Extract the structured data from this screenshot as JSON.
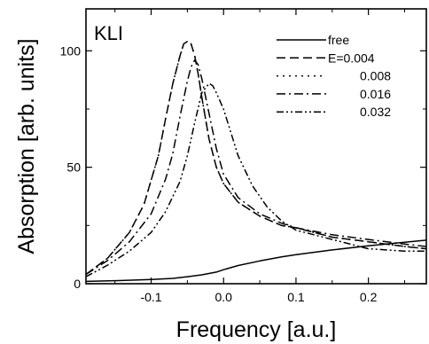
{
  "chart_data": {
    "type": "line",
    "panel_label": "KLI",
    "xlabel": "Frequency [a.u.]",
    "ylabel": "Absorption [arb. units]",
    "xlim": [
      -0.19,
      0.28
    ],
    "ylim": [
      0,
      118
    ],
    "x_ticks": [
      -0.1,
      0.0,
      0.1,
      0.2
    ],
    "x_tick_labels": [
      "-0.1",
      "0.0",
      "0.1",
      "0.2"
    ],
    "y_ticks": [
      0,
      50,
      100
    ],
    "y_tick_labels": [
      "0",
      "50",
      "100"
    ],
    "grid": false,
    "legend_position": "top-right",
    "legend_labels": [
      "free",
      "E=0.004",
      "0.008",
      "0.016",
      "0.032"
    ],
    "series": [
      {
        "name": "free",
        "dash": "solid",
        "x": [
          -0.19,
          -0.15,
          -0.1,
          -0.07,
          -0.05,
          -0.03,
          -0.01,
          0.0,
          0.02,
          0.05,
          0.08,
          0.1,
          0.15,
          0.2,
          0.25,
          0.28
        ],
        "y": [
          1.0,
          1.3,
          1.8,
          2.3,
          3.0,
          3.8,
          5.0,
          6.0,
          7.8,
          9.8,
          11.5,
          12.5,
          14.5,
          16.3,
          17.8,
          18.7
        ]
      },
      {
        "name": "E=0.004",
        "dash": "long-dash",
        "x": [
          -0.19,
          -0.16,
          -0.13,
          -0.11,
          -0.09,
          -0.08,
          -0.07,
          -0.06,
          -0.055,
          -0.05,
          -0.045,
          -0.04,
          -0.035,
          -0.03,
          -0.02,
          -0.01,
          0.0,
          0.02,
          0.05,
          0.08,
          0.1,
          0.15,
          0.2,
          0.25,
          0.28
        ],
        "y": [
          4,
          11,
          22,
          34,
          55,
          71,
          86,
          98,
          103,
          104,
          103,
          98,
          90,
          80,
          62,
          50,
          43,
          35,
          29,
          25,
          24,
          20,
          18,
          16,
          15
        ]
      },
      {
        "name": "0.008",
        "dash": "dot",
        "x": [
          -0.19,
          -0.16,
          -0.13,
          -0.11,
          -0.09,
          -0.08,
          -0.07,
          -0.06,
          -0.055,
          -0.05,
          -0.045,
          -0.04,
          -0.035,
          -0.03,
          -0.02,
          -0.01,
          0.0,
          0.02,
          0.05,
          0.08,
          0.1,
          0.15,
          0.2,
          0.25,
          0.28
        ],
        "y": [
          4,
          11,
          22,
          34,
          55,
          71,
          86,
          98,
          103,
          104,
          103,
          98,
          90,
          80,
          62,
          50,
          43,
          35,
          29,
          25,
          24,
          20,
          18,
          16,
          15
        ]
      },
      {
        "name": "0.016",
        "dash": "dash-dot",
        "x": [
          -0.19,
          -0.16,
          -0.13,
          -0.1,
          -0.08,
          -0.07,
          -0.06,
          -0.05,
          -0.045,
          -0.04,
          -0.035,
          -0.03,
          -0.02,
          -0.01,
          0.0,
          0.02,
          0.05,
          0.08,
          0.1,
          0.15,
          0.2,
          0.25,
          0.28
        ],
        "y": [
          4,
          10,
          18,
          30,
          45,
          56,
          72,
          87,
          93,
          96,
          94,
          88,
          73,
          58,
          47,
          37,
          30,
          26,
          24,
          21,
          19,
          17,
          16
        ]
      },
      {
        "name": "0.032",
        "dash": "dash-dot-dot",
        "x": [
          -0.19,
          -0.16,
          -0.13,
          -0.1,
          -0.08,
          -0.06,
          -0.05,
          -0.04,
          -0.03,
          -0.02,
          -0.015,
          -0.01,
          0.0,
          0.01,
          0.02,
          0.04,
          0.06,
          0.08,
          0.1,
          0.15,
          0.2,
          0.25,
          0.28
        ],
        "y": [
          3,
          8,
          14,
          22,
          31,
          44,
          55,
          69,
          82,
          86,
          85,
          82,
          75,
          65,
          55,
          42,
          33,
          27,
          23,
          19,
          15,
          14,
          14
        ]
      }
    ]
  }
}
